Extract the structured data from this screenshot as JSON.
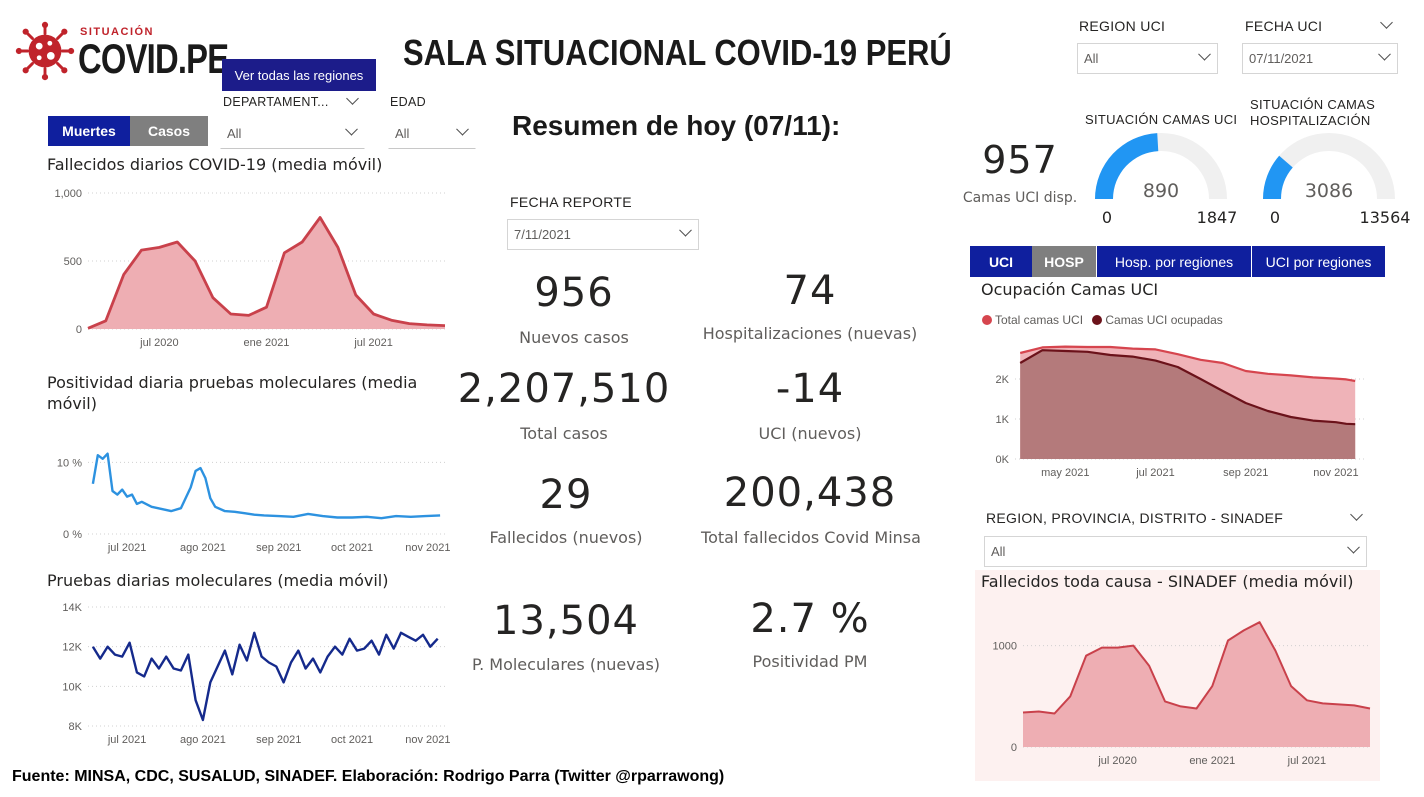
{
  "logo": {
    "small": "SITUACIÓN",
    "big": "COVID.PE"
  },
  "header": {
    "title": "SALA SITUACIONAL COVID-19 PERÚ",
    "regions_button": "Ver todas las regiones"
  },
  "filters": {
    "departamento": {
      "label": "DEPARTAMENT...",
      "value": "All"
    },
    "edad": {
      "label": "EDAD",
      "value": "All"
    },
    "region_uci": {
      "label": "REGION UCI",
      "value": "All"
    },
    "fecha_uci": {
      "label": "FECHA UCI",
      "value": "07/11/2021"
    },
    "fecha_reporte": {
      "label": "FECHA REPORTE",
      "value": "7/11/2021"
    },
    "sinadef": {
      "label": "REGION, PROVINCIA, DISTRITO - SINADEF",
      "value": "All"
    }
  },
  "toggles": {
    "left": [
      "Muertes",
      "Casos"
    ],
    "right": [
      "UCI",
      "HOSP",
      "Hosp. por regiones",
      "UCI por regiones"
    ]
  },
  "summary": {
    "title": "Resumen de hoy (07/11):",
    "kpis": [
      {
        "value": "956",
        "label": "Nuevos casos"
      },
      {
        "value": "74",
        "label": "Hospitalizaciones (nuevas)"
      },
      {
        "value": "2,207,510",
        "label": "Total casos"
      },
      {
        "value": "-14",
        "label": "UCI (nuevos)"
      },
      {
        "value": "29",
        "label": "Fallecidos  (nuevos)"
      },
      {
        "value": "200,438",
        "label": "Total fallecidos Covid Minsa"
      },
      {
        "value": "13,504",
        "label": "P. Moleculares (nuevas)"
      },
      {
        "value": "2.7 %",
        "label": "Positividad PM"
      }
    ]
  },
  "camas": {
    "uci_disp_value": "957",
    "uci_disp_label": "Camas UCI disp.",
    "gauge_uci": {
      "title": "SITUACIÓN CAMAS UCI",
      "value": 890,
      "min": 0,
      "max": 1847,
      "value_label": "890",
      "min_label": "0",
      "max_label": "1847"
    },
    "gauge_hosp": {
      "title": "SITUACIÓN CAMAS HOSPITALIZACIÓN",
      "value": 3086,
      "min": 0,
      "max": 13564,
      "value_label": "3086",
      "min_label": "0",
      "max_label": "13564"
    },
    "colors": {
      "fill": "#2196f3",
      "track": "#f0f0f0"
    }
  },
  "footer": "Fuente: MINSA, CDC, SUSALUD, SINADEF. Elaboración: Rodrigo Parra (Twitter @rparrawong)",
  "chart_data": [
    {
      "id": "fallecidos",
      "type": "area",
      "title": "Fallecidos diarios COVID-19 (media móvil)",
      "color": "#c9414b",
      "fill": "#eeaeb3",
      "ylim": [
        0,
        1000
      ],
      "yticks": [
        0,
        500,
        1000
      ],
      "ytick_labels": [
        "0",
        "500",
        "1,000"
      ],
      "xlim": [
        "2020-03",
        "2021-11"
      ],
      "xticks": [
        {
          "x": "2020-07",
          "label": "jul 2020"
        },
        {
          "x": "2021-01",
          "label": "ene 2021"
        },
        {
          "x": "2021-07",
          "label": "jul 2021"
        }
      ],
      "x": [
        "2020-03",
        "2020-04",
        "2020-05",
        "2020-06",
        "2020-07",
        "2020-08",
        "2020-09",
        "2020-10",
        "2020-11",
        "2020-12",
        "2021-01",
        "2021-02",
        "2021-03",
        "2021-04",
        "2021-05",
        "2021-06",
        "2021-07",
        "2021-08",
        "2021-09",
        "2021-10",
        "2021-11"
      ],
      "values": [
        5,
        60,
        400,
        580,
        600,
        640,
        500,
        230,
        110,
        100,
        160,
        560,
        640,
        820,
        600,
        250,
        110,
        65,
        40,
        30,
        25
      ]
    },
    {
      "id": "positividad",
      "type": "line",
      "title": "Positividad diaria pruebas moleculares (media móvil)",
      "color": "#2d92e0",
      "ylim": [
        0,
        12
      ],
      "yticks": [
        0,
        10
      ],
      "ytick_labels": [
        "0 %",
        "10 %"
      ],
      "xticks": [
        {
          "x": 4,
          "label": "jul 2021"
        },
        {
          "x": 35,
          "label": "ago 2021"
        },
        {
          "x": 66,
          "label": "sep 2021"
        },
        {
          "x": 96,
          "label": "oct 2021"
        },
        {
          "x": 127,
          "label": "nov 2021"
        }
      ],
      "xlim": [
        -12,
        134
      ],
      "x": [
        -10,
        -8,
        -6,
        -4,
        -2,
        0,
        2,
        4,
        6,
        8,
        10,
        14,
        18,
        22,
        26,
        30,
        32,
        34,
        36,
        38,
        40,
        44,
        48,
        52,
        56,
        60,
        66,
        72,
        78,
        84,
        90,
        96,
        102,
        108,
        114,
        120,
        126,
        132
      ],
      "values": [
        7,
        11,
        10.5,
        11.2,
        6,
        5.5,
        6.2,
        5.2,
        5.5,
        4.2,
        4.5,
        3.8,
        3.5,
        3.2,
        3.6,
        6.5,
        8.8,
        9.2,
        7.8,
        5,
        3.8,
        3.2,
        3.1,
        2.9,
        2.7,
        2.6,
        2.5,
        2.4,
        2.8,
        2.5,
        2.3,
        2.3,
        2.4,
        2.2,
        2.5,
        2.4,
        2.5,
        2.6
      ]
    },
    {
      "id": "pruebas",
      "type": "line",
      "title": "Pruebas diarias moleculares (media móvil)",
      "color": "#152a8c",
      "ylim": [
        8000,
        14000
      ],
      "yticks": [
        8000,
        10000,
        12000,
        14000
      ],
      "ytick_labels": [
        "8K",
        "10K",
        "12K",
        "14K"
      ],
      "xticks": [
        {
          "x": 4,
          "label": "jul 2021"
        },
        {
          "x": 35,
          "label": "ago 2021"
        },
        {
          "x": 66,
          "label": "sep 2021"
        },
        {
          "x": 96,
          "label": "oct 2021"
        },
        {
          "x": 127,
          "label": "nov 2021"
        }
      ],
      "xlim": [
        -12,
        134
      ],
      "x": [
        -10,
        -7,
        -4,
        -1,
        2,
        5,
        8,
        11,
        14,
        17,
        20,
        23,
        26,
        29,
        32,
        35,
        38,
        41,
        44,
        47,
        50,
        53,
        56,
        59,
        62,
        65,
        68,
        71,
        74,
        77,
        80,
        83,
        86,
        89,
        92,
        95,
        98,
        101,
        104,
        107,
        110,
        113,
        116,
        119,
        122,
        125,
        128,
        131
      ],
      "values": [
        12000,
        11400,
        12000,
        11600,
        11500,
        12200,
        10700,
        10500,
        11400,
        10900,
        11500,
        10900,
        10800,
        11600,
        9300,
        8300,
        10200,
        11000,
        11800,
        10600,
        12100,
        11300,
        12700,
        11500,
        11200,
        11000,
        10200,
        11200,
        11800,
        10900,
        11400,
        10700,
        11500,
        12000,
        11600,
        12400,
        11800,
        11900,
        12300,
        11600,
        12600,
        11900,
        12700,
        12500,
        12300,
        12600,
        12000,
        12400
      ]
    },
    {
      "id": "ocupacion_uci",
      "type": "area",
      "title": "Ocupación Camas UCI",
      "series": [
        {
          "name": "Total camas UCI",
          "color": "#d6454e",
          "fill": "#efb3b8",
          "values": [
            2650,
            2790,
            2810,
            2800,
            2800,
            2760,
            2740,
            2620,
            2480,
            2400,
            2200,
            2130,
            2090,
            2040,
            2010,
            1990,
            1950
          ]
        },
        {
          "name": "Camas UCI ocupadas",
          "color": "#6b121a",
          "fill": "#b47a7b",
          "values": [
            2400,
            2720,
            2700,
            2680,
            2600,
            2560,
            2460,
            2300,
            2000,
            1700,
            1400,
            1200,
            1050,
            960,
            920,
            880,
            870
          ]
        }
      ],
      "x": [
        "2021-04-01",
        "2021-04-16",
        "2021-05-01",
        "2021-05-16",
        "2021-06-01",
        "2021-06-16",
        "2021-07-01",
        "2021-07-16",
        "2021-08-01",
        "2021-08-16",
        "2021-09-01",
        "2021-09-16",
        "2021-10-01",
        "2021-10-16",
        "2021-11-01",
        "2021-11-08",
        "2021-11-14"
      ],
      "xlim": [
        "2021-03-28",
        "2021-11-22"
      ],
      "xticks": [
        {
          "x": "2021-05-01",
          "label": "may 2021"
        },
        {
          "x": "2021-07-01",
          "label": "jul 2021"
        },
        {
          "x": "2021-09-01",
          "label": "sep 2021"
        },
        {
          "x": "2021-11-01",
          "label": "nov 2021"
        }
      ],
      "ylim": [
        0,
        3000
      ],
      "yticks": [
        0,
        1000,
        2000
      ],
      "ytick_labels": [
        "0K",
        "1K",
        "2K"
      ]
    },
    {
      "id": "sinadef",
      "type": "area",
      "title": "Fallecidos toda causa - SINADEF (media móvil)",
      "color": "#c9414b",
      "fill": "#eeaeb3",
      "ylim": [
        0,
        1400
      ],
      "yticks": [
        0,
        1000
      ],
      "ytick_labels": [
        "0",
        "1000"
      ],
      "xlim": [
        "2020-01",
        "2021-11"
      ],
      "xticks": [
        {
          "x": "2020-07",
          "label": "jul 2020"
        },
        {
          "x": "2021-01",
          "label": "ene 2021"
        },
        {
          "x": "2021-07",
          "label": "jul 2021"
        }
      ],
      "x": [
        "2020-01",
        "2020-02",
        "2020-03",
        "2020-04",
        "2020-05",
        "2020-06",
        "2020-07",
        "2020-08",
        "2020-09",
        "2020-10",
        "2020-11",
        "2020-12",
        "2021-01",
        "2021-02",
        "2021-03",
        "2021-04",
        "2021-05",
        "2021-06",
        "2021-07",
        "2021-08",
        "2021-09",
        "2021-10",
        "2021-11"
      ],
      "values": [
        340,
        350,
        330,
        500,
        900,
        980,
        980,
        1000,
        800,
        450,
        400,
        380,
        600,
        1050,
        1150,
        1230,
        950,
        600,
        460,
        430,
        420,
        410,
        380
      ]
    }
  ]
}
